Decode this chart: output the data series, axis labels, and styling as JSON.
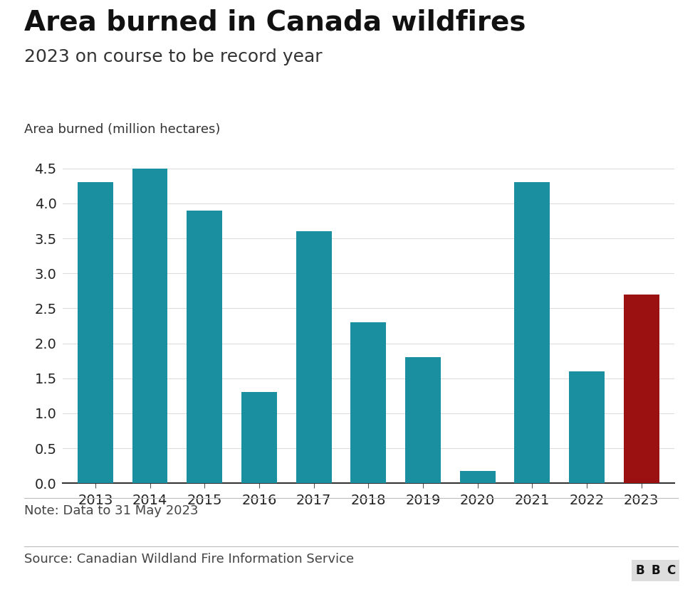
{
  "title": "Area burned in Canada wildfires",
  "subtitle": "2023 on course to be record year",
  "ylabel": "Area burned (million hectares)",
  "note": "Note: Data to 31 May 2023",
  "source": "Source: Canadian Wildland Fire Information Service",
  "bbc_label": "BBC",
  "years": [
    2013,
    2014,
    2015,
    2016,
    2017,
    2018,
    2019,
    2020,
    2021,
    2022,
    2023
  ],
  "values": [
    4.3,
    4.5,
    3.9,
    1.3,
    3.6,
    2.3,
    1.8,
    0.18,
    4.3,
    1.6,
    2.7
  ],
  "bar_colors": [
    "#1a8fa0",
    "#1a8fa0",
    "#1a8fa0",
    "#1a8fa0",
    "#1a8fa0",
    "#1a8fa0",
    "#1a8fa0",
    "#1a8fa0",
    "#1a8fa0",
    "#1a8fa0",
    "#9b1010"
  ],
  "ylim": [
    0,
    4.75
  ],
  "yticks": [
    0.0,
    0.5,
    1.0,
    1.5,
    2.0,
    2.5,
    3.0,
    3.5,
    4.0,
    4.5
  ],
  "background_color": "#ffffff",
  "title_fontsize": 28,
  "subtitle_fontsize": 18,
  "ylabel_fontsize": 13,
  "tick_fontsize": 14,
  "note_fontsize": 13,
  "source_fontsize": 13,
  "bbc_fontsize": 12,
  "bar_width": 0.65
}
